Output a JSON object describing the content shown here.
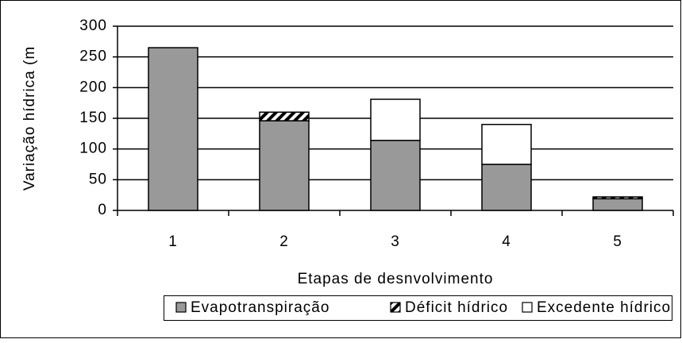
{
  "chart_data": {
    "type": "stacked_bar",
    "categories": [
      "1",
      "2",
      "3",
      "4",
      "5"
    ],
    "series": [
      {
        "name": "Evapotranspiração",
        "color": "#999999",
        "values": [
          265,
          146,
          114,
          75,
          19
        ]
      },
      {
        "name": "Déficit hídrico",
        "color": "#000000",
        "values": [
          0,
          14,
          0,
          0,
          3
        ]
      },
      {
        "name": "Excedente hídrico",
        "color": "#ffffff",
        "values": [
          0,
          0,
          67,
          65,
          0
        ]
      }
    ],
    "ylabel": "Variação hídrica (m",
    "xlabel": "Etapas de desnvolvimento",
    "ylim": [
      0,
      300
    ],
    "yticks": [
      0,
      50,
      100,
      150,
      200,
      250,
      300
    ],
    "grid": true,
    "legend": "bottom"
  }
}
